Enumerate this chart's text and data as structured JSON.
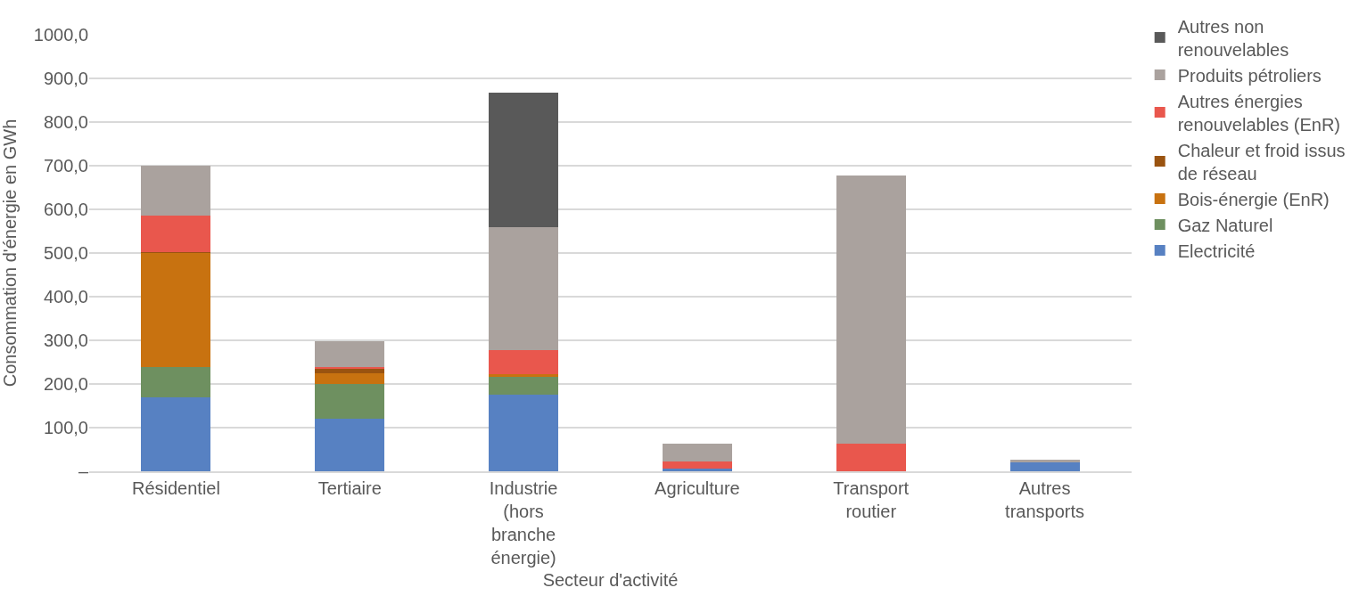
{
  "chart_data": {
    "type": "bar",
    "stacked": true,
    "xlabel": "Secteur d'activité",
    "ylabel": "Consommation d'énergie en GWh",
    "categories": [
      "Résidentiel",
      "Tertiaire",
      "Industrie (hors branche énergie)",
      "Agriculture",
      "Transport routier",
      "Autres transports"
    ],
    "series": [
      {
        "name": "Electricité",
        "color": "#5781c2",
        "values": [
          170,
          120,
          176,
          7,
          0,
          21
        ]
      },
      {
        "name": "Gaz Naturel",
        "color": "#6e9060",
        "values": [
          68,
          80,
          40,
          0,
          0,
          0
        ]
      },
      {
        "name": "Bois-énergie (EnR)",
        "color": "#c87210",
        "values": [
          262,
          24,
          6,
          0,
          0,
          0
        ]
      },
      {
        "name": "Chaleur et froid issus de réseau",
        "color": "#9a5310",
        "values": [
          3,
          10,
          0,
          0,
          0,
          0
        ]
      },
      {
        "name": "Autres énergies renouvelables (EnR)",
        "color": "#e9574d",
        "values": [
          83,
          4,
          55,
          16,
          64,
          0
        ]
      },
      {
        "name": "Produits pétroliers",
        "color": "#aaa29e",
        "values": [
          114,
          59,
          283,
          41,
          614,
          6
        ]
      },
      {
        "name": "Autres non renouvelables",
        "color": "#595959",
        "values": [
          0,
          0,
          307,
          0,
          0,
          0
        ]
      }
    ],
    "ylim": [
      0,
      1000
    ],
    "yticks": [
      {
        "value": 0,
        "label": "–"
      },
      {
        "value": 100,
        "label": "100,0"
      },
      {
        "value": 200,
        "label": "200,0"
      },
      {
        "value": 300,
        "label": "300,0"
      },
      {
        "value": 400,
        "label": "400,0"
      },
      {
        "value": 500,
        "label": "500,0"
      },
      {
        "value": 600,
        "label": "600,0"
      },
      {
        "value": 700,
        "label": "700,0"
      },
      {
        "value": 800,
        "label": "800,0"
      },
      {
        "value": 900,
        "label": "900,0"
      },
      {
        "value": 1000,
        "label": "1000,0"
      }
    ],
    "grid": "y",
    "legend": "right"
  }
}
